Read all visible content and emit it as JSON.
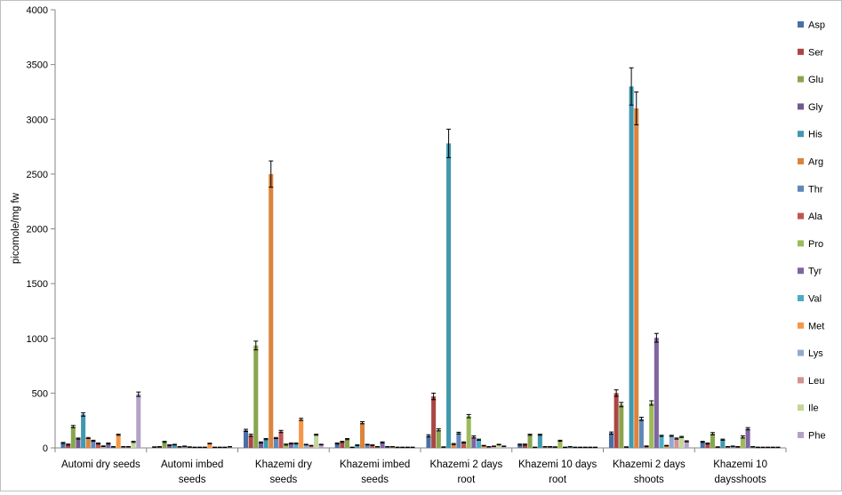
{
  "chart_data": {
    "type": "bar",
    "title": "",
    "xlabel": "",
    "ylabel": "picomole/mg fw",
    "ylim": [
      0,
      4000
    ],
    "yticks": [
      0,
      500,
      1000,
      1500,
      2000,
      2500,
      3000,
      3500,
      4000
    ],
    "grid": false,
    "legend": "right",
    "categories": [
      [
        "Automi dry seeds"
      ],
      [
        "Automi imbed",
        "seeds"
      ],
      [
        "Khazemi dry",
        "seeds"
      ],
      [
        "Khazemi imbed",
        "seeds"
      ],
      [
        "Khazemi 2 days",
        "root"
      ],
      [
        "Khazemi 10 days",
        "root"
      ],
      [
        "Khazemi 2 days",
        "shoots"
      ],
      [
        "Khazemi 10",
        "daysshoots"
      ]
    ],
    "series": [
      {
        "name": "Asp",
        "color": "#4a6fa5",
        "values": [
          45,
          8,
          160,
          40,
          110,
          30,
          135,
          55
        ],
        "errors": [
          5,
          2,
          10,
          5,
          10,
          5,
          10,
          5
        ]
      },
      {
        "name": "Ser",
        "color": "#aa4643",
        "values": [
          30,
          10,
          115,
          55,
          470,
          30,
          500,
          40
        ],
        "errors": [
          5,
          2,
          10,
          5,
          30,
          5,
          30,
          5
        ]
      },
      {
        "name": "Glu",
        "color": "#89a54e",
        "values": [
          195,
          55,
          935,
          80,
          165,
          120,
          395,
          130
        ],
        "errors": [
          10,
          5,
          40,
          5,
          10,
          5,
          20,
          10
        ]
      },
      {
        "name": "Gly",
        "color": "#71588f",
        "values": [
          85,
          25,
          50,
          5,
          8,
          5,
          8,
          8
        ],
        "errors": [
          5,
          3,
          5,
          2,
          2,
          2,
          2,
          2
        ]
      },
      {
        "name": "His",
        "color": "#4198af",
        "values": [
          305,
          30,
          80,
          25,
          2780,
          120,
          3300,
          75
        ],
        "errors": [
          15,
          3,
          5,
          3,
          130,
          5,
          170,
          5
        ]
      },
      {
        "name": "Arg",
        "color": "#db843d",
        "values": [
          90,
          10,
          2500,
          230,
          35,
          10,
          3100,
          10
        ],
        "errors": [
          5,
          2,
          120,
          10,
          5,
          2,
          150,
          2
        ]
      },
      {
        "name": "Thr",
        "color": "#5f88b9",
        "values": [
          65,
          15,
          90,
          30,
          135,
          10,
          265,
          15
        ],
        "errors": [
          5,
          2,
          5,
          3,
          8,
          2,
          15,
          2
        ]
      },
      {
        "name": "Ala",
        "color": "#c05552",
        "values": [
          40,
          8,
          150,
          25,
          50,
          8,
          15,
          10
        ],
        "errors": [
          5,
          2,
          10,
          3,
          5,
          2,
          3,
          2
        ]
      },
      {
        "name": "Pro",
        "color": "#9bbb59",
        "values": [
          15,
          5,
          30,
          10,
          290,
          65,
          410,
          100
        ],
        "errors": [
          3,
          2,
          5,
          2,
          15,
          5,
          20,
          10
        ]
      },
      {
        "name": "Tyr",
        "color": "#8064a2",
        "values": [
          40,
          5,
          40,
          50,
          100,
          5,
          1005,
          175
        ],
        "errors": [
          5,
          2,
          5,
          5,
          10,
          2,
          40,
          10
        ]
      },
      {
        "name": "Val",
        "color": "#4bacc6",
        "values": [
          10,
          5,
          40,
          10,
          75,
          10,
          110,
          10
        ],
        "errors": [
          2,
          2,
          5,
          2,
          5,
          2,
          5,
          2
        ]
      },
      {
        "name": "Met",
        "color": "#f79646",
        "values": [
          120,
          40,
          260,
          10,
          20,
          5,
          20,
          5
        ],
        "errors": [
          5,
          3,
          10,
          2,
          3,
          2,
          3,
          2
        ]
      },
      {
        "name": "Lys",
        "color": "#93a9cf",
        "values": [
          10,
          5,
          30,
          5,
          10,
          5,
          110,
          5
        ],
        "errors": [
          2,
          2,
          3,
          2,
          2,
          2,
          5,
          2
        ]
      },
      {
        "name": "Leu",
        "color": "#d19392",
        "values": [
          10,
          5,
          20,
          5,
          15,
          5,
          85,
          5
        ],
        "errors": [
          2,
          2,
          3,
          2,
          2,
          2,
          5,
          2
        ]
      },
      {
        "name": "Ile",
        "color": "#c3d69b",
        "values": [
          55,
          5,
          120,
          5,
          30,
          5,
          100,
          5
        ],
        "errors": [
          5,
          2,
          5,
          2,
          3,
          2,
          5,
          2
        ]
      },
      {
        "name": "Phe",
        "color": "#b3a2c7",
        "values": [
          490,
          10,
          30,
          5,
          15,
          5,
          60,
          5
        ],
        "errors": [
          20,
          2,
          3,
          2,
          2,
          2,
          5,
          2
        ]
      }
    ]
  }
}
